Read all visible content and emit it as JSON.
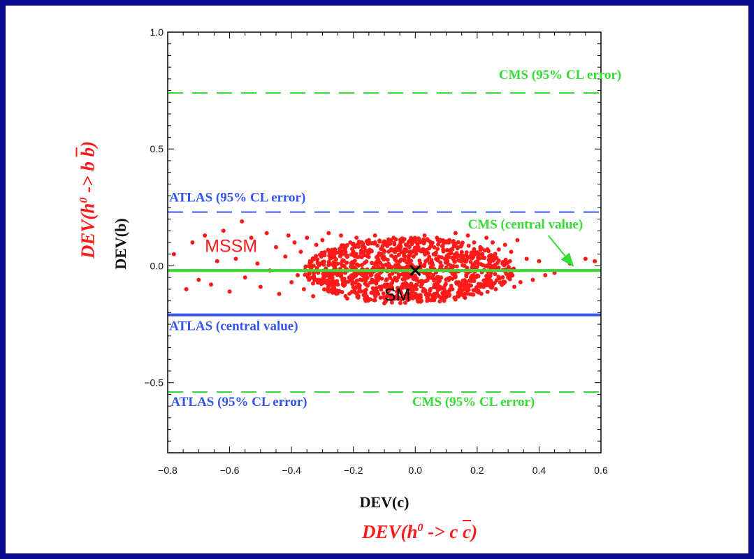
{
  "chart_data": {
    "type": "scatter",
    "xlabel": "DEV(c)",
    "ylabel": "DEV(b)",
    "outer_xlabel": {
      "prefix": "DEV(h",
      "sup": "0",
      "middle": " -> c ",
      "bar": "c",
      "suffix": ")"
    },
    "outer_ylabel": {
      "prefix": "DEV(h",
      "sup": "0",
      "middle": " -> b ",
      "bar": "b",
      "suffix": ")"
    },
    "xlim": [
      -0.8,
      0.6
    ],
    "ylim": [
      -0.8,
      1.0
    ],
    "xticks": [
      -0.8,
      -0.6,
      -0.4,
      -0.2,
      0.0,
      0.2,
      0.4,
      0.6
    ],
    "xtick_labels": [
      "−0.8",
      "−0.6",
      "−0.4",
      "−0.2",
      "0.0",
      "0.2",
      "0.4",
      "0.6"
    ],
    "yticks": [
      1.0,
      0.5,
      0.0,
      -0.5
    ],
    "ytick_labels": [
      "1.0",
      "0.5",
      "0.0",
      "−0.5"
    ],
    "grid": false,
    "colors": {
      "mssm": "#ff1a1a",
      "cms": "#33dd33",
      "atlas": "#3355ee",
      "sm": "#000000"
    },
    "hlines": [
      {
        "id": "cms-95-upper",
        "y": 0.74,
        "style": "dashed",
        "color": "#33dd33"
      },
      {
        "id": "atlas-95-upper",
        "y": 0.23,
        "style": "dashed",
        "color": "#3355ee"
      },
      {
        "id": "cms-central",
        "y": -0.02,
        "style": "solid",
        "color": "#33dd33"
      },
      {
        "id": "atlas-central",
        "y": -0.21,
        "style": "solid",
        "color": "#3355ee"
      },
      {
        "id": "cms-95-lower",
        "y": -0.54,
        "style": "dashed",
        "color": "#33dd33"
      }
    ],
    "annotations": [
      {
        "id": "cms-95-upper-label",
        "text": "CMS (95% CL error)",
        "x": 0.27,
        "y": 0.8,
        "color": "#33dd33"
      },
      {
        "id": "atlas-95-upper-label",
        "text": "ATLAS (95% CL error)",
        "x": -0.795,
        "y": 0.275,
        "color": "#3355ee"
      },
      {
        "id": "cms-central-label",
        "text": "CMS (central value)",
        "x": 0.17,
        "y": 0.16,
        "color": "#33dd33"
      },
      {
        "id": "atlas-central-label",
        "text": "ATLAS (central value)",
        "x": -0.795,
        "y": -0.275,
        "color": "#3355ee"
      },
      {
        "id": "atlas-95-lower-label",
        "text": "ATLAS (95% CL error)",
        "x": -0.79,
        "y": -0.6,
        "color": "#3355ee"
      },
      {
        "id": "cms-95-lower-label",
        "text": "CMS (95% CL error)",
        "x": -0.01,
        "y": -0.6,
        "color": "#33dd33"
      }
    ],
    "arrow": {
      "from": [
        0.43,
        0.13
      ],
      "to": [
        0.51,
        0.0
      ],
      "color": "#33dd33"
    },
    "mssm_label": {
      "text": "MSSM",
      "x": -0.68,
      "y": 0.06
    },
    "sm_point": {
      "x": 0.0,
      "y": -0.02,
      "label": "SM",
      "label_x": -0.1,
      "label_y": -0.15
    },
    "mssm_points": {
      "x": [
        -0.78,
        -0.74,
        -0.72,
        -0.7,
        -0.68,
        -0.66,
        -0.64,
        -0.62,
        -0.6,
        -0.58,
        -0.56,
        -0.55,
        -0.53,
        -0.51,
        -0.5,
        -0.48,
        -0.47,
        -0.45,
        -0.44,
        -0.42,
        -0.41,
        -0.4,
        -0.39,
        -0.38,
        -0.37,
        -0.36,
        -0.35,
        -0.34,
        -0.33,
        -0.32,
        -0.31,
        -0.3,
        -0.29,
        -0.28,
        -0.27,
        -0.26,
        -0.25,
        -0.24,
        -0.23,
        -0.22,
        -0.21,
        -0.2,
        -0.19,
        -0.18,
        -0.17,
        -0.16,
        -0.15,
        -0.14,
        -0.13,
        -0.12,
        -0.11,
        -0.1,
        -0.09,
        -0.08,
        -0.07,
        -0.06,
        -0.05,
        -0.04,
        -0.03,
        -0.02,
        -0.01,
        0.0,
        0.01,
        0.02,
        0.03,
        0.04,
        0.05,
        0.06,
        0.07,
        0.08,
        0.09,
        0.1,
        0.11,
        0.12,
        0.13,
        0.14,
        0.15,
        0.16,
        0.17,
        0.18,
        0.19,
        0.2,
        0.21,
        0.22,
        0.23,
        0.24,
        0.25,
        0.26,
        0.27,
        0.28,
        0.29,
        0.3,
        0.31,
        0.32,
        0.33,
        0.34,
        0.36,
        0.38,
        0.4,
        0.42,
        0.45,
        0.5,
        0.55,
        0.58
      ],
      "y": [
        0.05,
        -0.1,
        0.1,
        -0.06,
        0.13,
        -0.08,
        0.02,
        0.15,
        -0.11,
        0.03,
        0.19,
        -0.05,
        0.12,
        0.01,
        -0.09,
        0.14,
        -0.02,
        0.08,
        -0.12,
        0.04,
        0.13,
        -0.07,
        0.1,
        -0.04,
        0.06,
        -0.1,
        0.12,
        0.02,
        -0.13,
        0.09,
        -0.06,
        0.11,
        -0.03,
        0.14,
        -0.11,
        0.07,
        -0.08,
        0.13,
        0.0,
        -0.14,
        0.1,
        -0.05,
        0.12,
        -0.1,
        0.08,
        -0.15,
        0.11,
        -0.07,
        0.13,
        -0.12,
        0.05,
        -0.16,
        0.1,
        -0.08,
        0.12,
        -0.13,
        0.09,
        -0.14,
        0.07,
        -0.1,
        0.11,
        -0.12,
        0.08,
        -0.15,
        0.13,
        -0.06,
        0.1,
        -0.14,
        0.12,
        -0.09,
        0.07,
        -0.13,
        0.11,
        -0.1,
        0.14,
        -0.07,
        0.09,
        -0.12,
        0.13,
        -0.05,
        0.1,
        -0.11,
        0.08,
        -0.09,
        0.12,
        -0.06,
        0.1,
        -0.1,
        0.07,
        -0.08,
        0.09,
        -0.05,
        0.06,
        -0.09,
        0.11,
        -0.07,
        0.03,
        -0.06,
        0.02,
        -0.04,
        -0.03,
        0.01,
        0.03,
        0.02
      ]
    }
  }
}
